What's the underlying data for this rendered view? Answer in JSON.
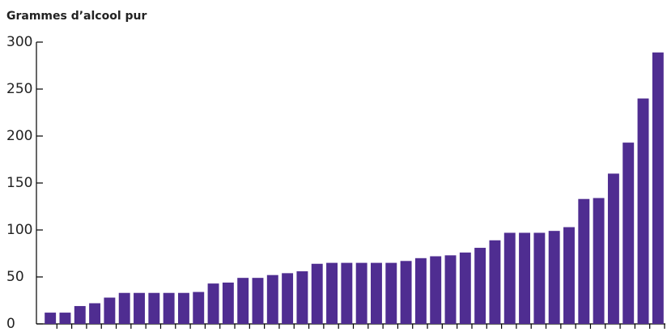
{
  "chart_data": {
    "type": "bar",
    "title": "Grammes d’alcool pur",
    "categories": [
      null,
      null,
      null,
      null,
      null,
      null,
      null,
      null,
      null,
      null,
      null,
      null,
      null,
      null,
      null,
      null,
      null,
      null,
      null,
      null,
      null,
      null,
      null,
      null,
      null,
      null,
      null,
      null,
      null,
      null,
      null,
      null,
      null,
      null,
      null,
      null,
      null,
      null,
      null,
      null,
      null,
      null
    ],
    "values": [
      12,
      12,
      19,
      22,
      28,
      33,
      33,
      33,
      33,
      33,
      34,
      43,
      44,
      49,
      49,
      52,
      54,
      56,
      64,
      65,
      65,
      65,
      65,
      65,
      67,
      70,
      72,
      73,
      76,
      81,
      89,
      97,
      97,
      97,
      99,
      103,
      133,
      134,
      160,
      193,
      240,
      289
    ],
    "color": "#4f2d91",
    "ylim": [
      0,
      300
    ],
    "yticks": [
      0,
      50,
      100,
      150,
      200,
      250,
      300
    ]
  }
}
